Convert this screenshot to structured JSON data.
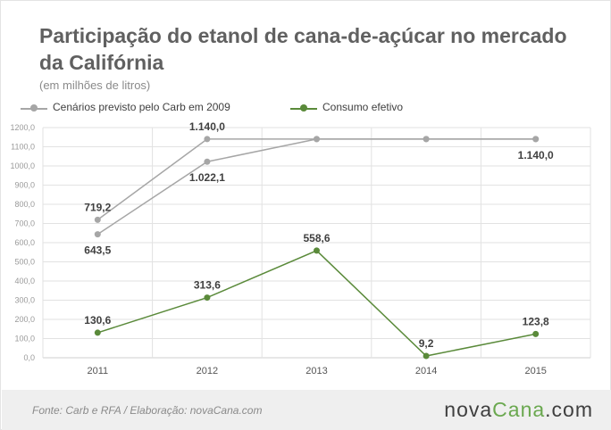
{
  "header": {
    "title": "Participação do etanol de cana-de-açúcar  no mercado da Califórnia",
    "subtitle": "(em milhões de litros)"
  },
  "chart_data": {
    "type": "line",
    "title": "Participação do etanol de cana-de-açúcar  no mercado da Califórnia",
    "subtitle": "(em milhões de litros)",
    "categories": [
      "2011",
      "2012",
      "2013",
      "2014",
      "2015"
    ],
    "y_ticks": [
      "0,0",
      "100,0",
      "200,0",
      "300,0",
      "400,0",
      "500,0",
      "600,0",
      "700,0",
      "800,0",
      "900,0",
      "1000,0",
      "1100,0",
      "1200,0"
    ],
    "ylim": [
      0,
      1200
    ],
    "grid": true,
    "legend_position": "top-left",
    "series": [
      {
        "name": "Cenários previsto pelo Carb em 2009",
        "color": "#a6a6a6",
        "values": [
          719.2,
          1140.0,
          1140.0,
          1140.0,
          1140.0
        ],
        "labels": [
          "719,2",
          "1.140,0",
          "",
          "",
          "1.140,0"
        ]
      },
      {
        "name": "",
        "color": "#a6a6a6",
        "values": [
          643.5,
          1022.1,
          1140.0,
          1140.0,
          1140.0
        ],
        "labels": [
          "643,5",
          "1.022,1",
          "",
          "",
          ""
        ]
      },
      {
        "name": "Consumo efetivo",
        "color": "#5a8a3a",
        "values": [
          130.6,
          313.6,
          558.6,
          9.2,
          123.8
        ],
        "labels": [
          "130,6",
          "313,6",
          "558,6",
          "9,2",
          "123,8"
        ]
      }
    ]
  },
  "legend": {
    "items": [
      {
        "label": "Cenários previsto pelo Carb em 2009",
        "color": "#a6a6a6"
      },
      {
        "label": "Consumo efetivo",
        "color": "#5a8a3a"
      }
    ]
  },
  "footer": {
    "source": "Fonte:  Carb  e  RFA  /  Elaboração:  novaCana.com",
    "brand_part1": "nova",
    "brand_part2": "Cana",
    "brand_part3": ".com",
    "brand_color": "#6aa84f"
  }
}
